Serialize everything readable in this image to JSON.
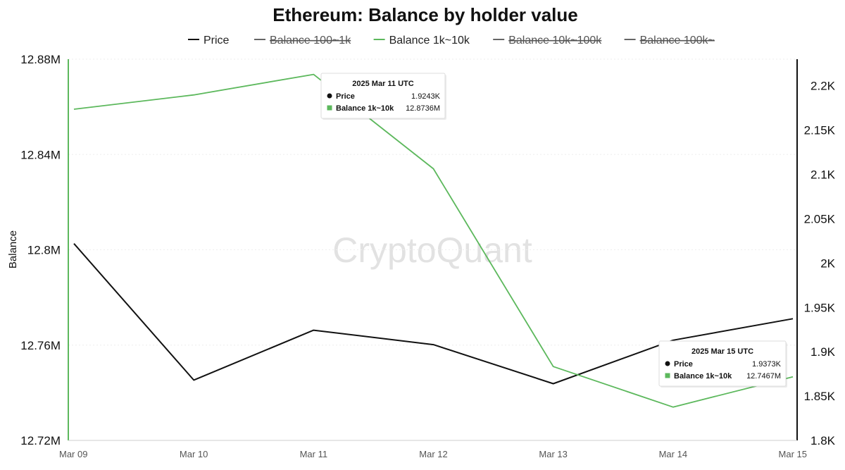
{
  "chart_data": {
    "type": "line",
    "title": "Ethereum: Balance by holder value",
    "legend": [
      {
        "name": "Price",
        "color": "#111111",
        "visible": true
      },
      {
        "name": "Balance 100~1k",
        "color": "#666666",
        "visible": false
      },
      {
        "name": "Balance 1k~10k",
        "color": "#5cb85c",
        "visible": true
      },
      {
        "name": "Balance 10k~100k",
        "color": "#666666",
        "visible": false
      },
      {
        "name": "Balance 100k~",
        "color": "#666666",
        "visible": false
      }
    ],
    "legend_position": "top-center",
    "x": [
      "Mar 09",
      "Mar 10",
      "Mar 11",
      "Mar 12",
      "Mar 13",
      "Mar 14",
      "Mar 15"
    ],
    "y_left": {
      "label": "Balance",
      "min": 12.72,
      "max": 12.88,
      "ticks": [
        12.72,
        12.76,
        12.8,
        12.84,
        12.88
      ],
      "tick_labels": [
        "12.72M",
        "12.76M",
        "12.8M",
        "12.84M",
        "12.88M"
      ]
    },
    "y_right": {
      "label": "",
      "min": 1.8,
      "max": 2.23,
      "ticks": [
        1.8,
        1.85,
        1.9,
        1.95,
        2.0,
        2.05,
        2.1,
        2.15,
        2.2
      ],
      "tick_labels": [
        "1.8K",
        "1.85K",
        "1.9K",
        "1.95K",
        "2K",
        "2.05K",
        "2.1K",
        "2.15K",
        "2.2K"
      ]
    },
    "series": [
      {
        "name": "Price",
        "axis": "right",
        "color": "#111111",
        "values": [
          2.022,
          1.868,
          1.9243,
          1.908,
          1.864,
          1.913,
          1.9373
        ]
      },
      {
        "name": "Balance 1k~10k",
        "axis": "left",
        "color": "#5cb85c",
        "values": [
          12.859,
          12.865,
          12.8736,
          12.834,
          12.751,
          12.734,
          12.7467
        ]
      }
    ],
    "grid": true,
    "tooltips": [
      {
        "title": "2025 Mar 11 UTC",
        "rows": [
          {
            "label": "Price",
            "value": "1.9243K"
          },
          {
            "label": "Balance 1k~10k",
            "value": "12.8736M"
          }
        ]
      },
      {
        "title": "2025 Mar 15 UTC",
        "rows": [
          {
            "label": "Price",
            "value": "1.9373K"
          },
          {
            "label": "Balance 1k~10k",
            "value": "12.7467M"
          }
        ]
      }
    ],
    "watermark": "CryptoQuant"
  }
}
